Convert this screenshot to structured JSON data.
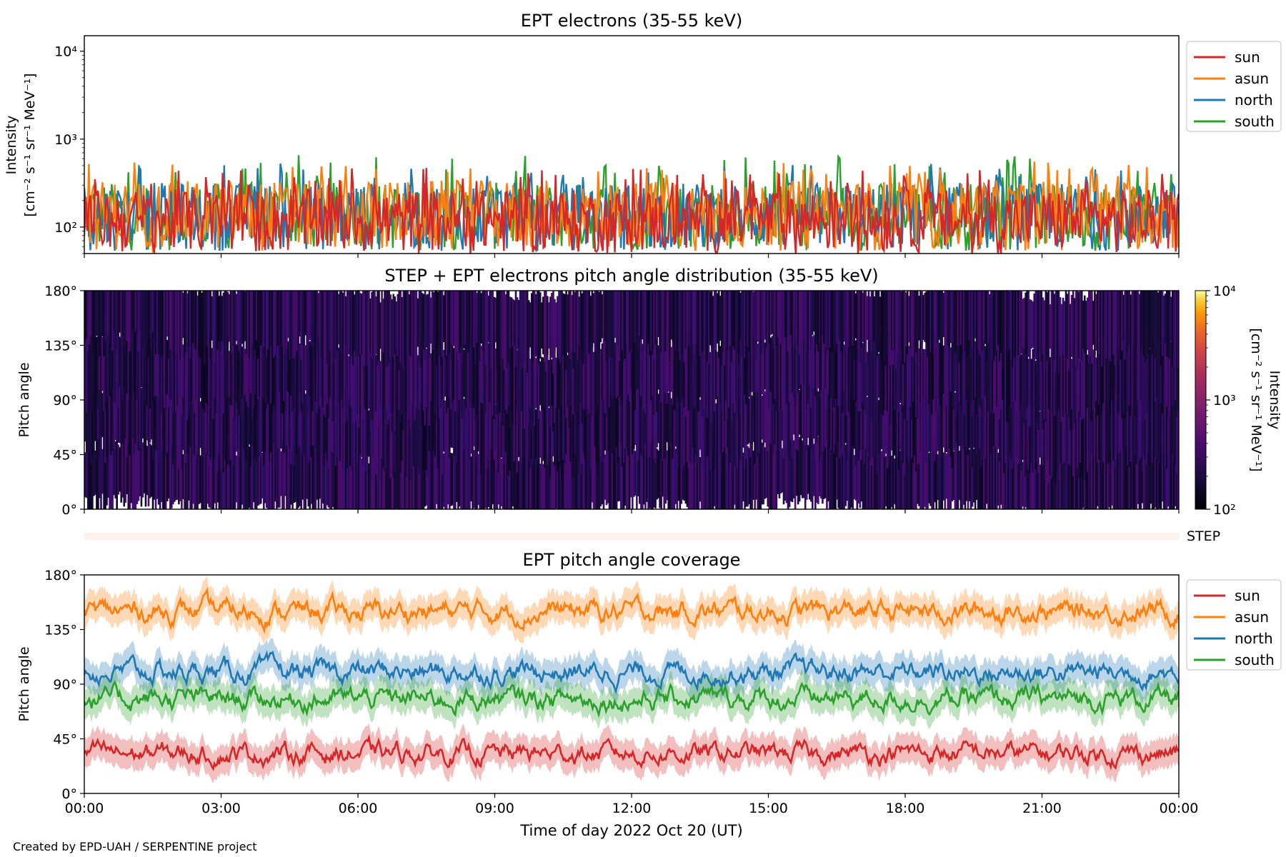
{
  "chart_data": [
    {
      "type": "line",
      "title": "EPT electrons (35-55 keV)",
      "xlabel": "",
      "ylabel_lines": [
        "Intensity",
        "[cm$^{-2}$ s$^{-1}$ sr$^{-1}$ MeV$^{-1}$]"
      ],
      "ylabel_line1": "Intensity",
      "ylabel_line2": "[cm⁻² s⁻¹ sr⁻¹ MeV⁻¹]",
      "yscale": "log",
      "ylim": [
        50,
        15000
      ],
      "yticks": [
        {
          "value": 100,
          "label": "10²"
        },
        {
          "value": 1000,
          "label": "10³"
        },
        {
          "value": 10000,
          "label": "10⁴"
        }
      ],
      "xlim_hours": [
        0,
        24
      ],
      "legend_placement": "outside-right",
      "series": [
        {
          "name": "sun",
          "color": "#d62728",
          "typical_range": [
            55,
            300
          ],
          "peak": 470
        },
        {
          "name": "asun",
          "color": "#ff7f0e",
          "typical_range": [
            60,
            380
          ],
          "peak": 560
        },
        {
          "name": "north",
          "color": "#1f77b4",
          "typical_range": [
            60,
            360
          ],
          "peak": 530
        },
        {
          "name": "south",
          "color": "#2ca02c",
          "typical_range": [
            60,
            360
          ],
          "peak": 660
        }
      ]
    },
    {
      "type": "heatmap",
      "title": "STEP + EPT electrons pitch angle distribution (35-55 keV)",
      "ylabel": "Pitch angle",
      "ylim": [
        0,
        180
      ],
      "yticks": [
        {
          "value": 0,
          "label": "0°"
        },
        {
          "value": 45,
          "label": "45°"
        },
        {
          "value": 90,
          "label": "90°"
        },
        {
          "value": 135,
          "label": "135°"
        },
        {
          "value": 180,
          "label": "180°"
        }
      ],
      "colormap": "inferno",
      "colorbar": {
        "label_line1": "Intensity",
        "label_line2": "[cm⁻² s⁻¹ sr⁻¹ MeV⁻¹]",
        "scale": "log",
        "range": [
          100,
          10000
        ],
        "ticks": [
          {
            "value": 100,
            "label": "10²"
          },
          {
            "value": 1000,
            "label": "10³"
          },
          {
            "value": 10000,
            "label": "10⁴"
          }
        ]
      },
      "typical_intensity": [
        100,
        300
      ]
    },
    {
      "type": "bar",
      "label": "STEP",
      "color": "#fff2ec"
    },
    {
      "type": "line",
      "title": "EPT pitch angle coverage",
      "xlabel": "Time of day 2022 Oct 20 (UT)",
      "ylabel": "Pitch angle",
      "ylim": [
        0,
        180
      ],
      "yticks": [
        {
          "value": 0,
          "label": "0°"
        },
        {
          "value": 45,
          "label": "45°"
        },
        {
          "value": 90,
          "label": "90°"
        },
        {
          "value": 135,
          "label": "135°"
        },
        {
          "value": 180,
          "label": "180°"
        }
      ],
      "xticks": [
        "00:00",
        "03:00",
        "06:00",
        "09:00",
        "12:00",
        "15:00",
        "18:00",
        "21:00",
        "00:00"
      ],
      "xlim_hours": [
        0,
        24
      ],
      "legend_placement": "outside-right",
      "series": [
        {
          "name": "sun",
          "color": "#d62728",
          "mean": 33,
          "spread": 13,
          "band": 12
        },
        {
          "name": "asun",
          "color": "#ff7f0e",
          "mean": 150,
          "spread": 14,
          "band": 12
        },
        {
          "name": "north",
          "color": "#1f77b4",
          "mean": 100,
          "spread": 14,
          "band": 12
        },
        {
          "name": "south",
          "color": "#2ca02c",
          "mean": 78,
          "spread": 14,
          "band": 12
        }
      ]
    }
  ],
  "footer": {
    "credit": "Created by EPD-UAH / SERPENTINE project"
  }
}
